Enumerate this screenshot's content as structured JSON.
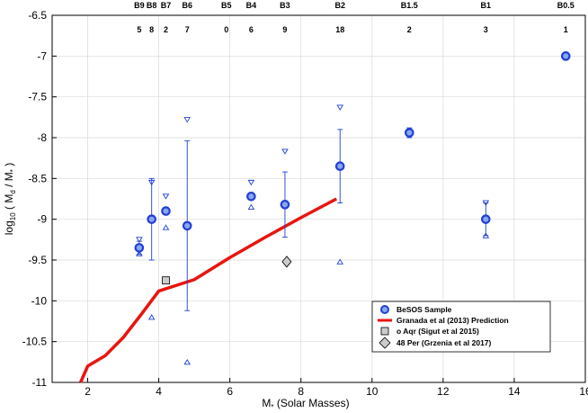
{
  "chart_data": {
    "type": "scatter",
    "xlabel": "M_* (Solar Masses)",
    "ylabel": "log10 (M_d / M_*)",
    "xlabel_text": "M",
    "xlabel_sub": "*",
    "xlabel_rest": " (Solar Masses)",
    "ylabel_parts": {
      "a": "log",
      "b": "10",
      "c": " ( M",
      "d": "d",
      "e": " / M",
      "f": "*",
      "g": " )"
    },
    "xlim": [
      1,
      16
    ],
    "ylim": [
      -11,
      -6.5
    ],
    "xticks": [
      "2",
      "4",
      "6",
      "8",
      "10",
      "12",
      "14",
      "16"
    ],
    "yticks": [
      "-6.5",
      "-7",
      "-7.5",
      "-8",
      "-8.5",
      "-9",
      "-9.5",
      "-10",
      "-10.5",
      "-11"
    ],
    "spectral_types": [
      {
        "label": "B9",
        "count": "5",
        "x": 3.45
      },
      {
        "label": "B8",
        "count": "8",
        "x": 3.8
      },
      {
        "label": "B7",
        "count": "2",
        "x": 4.2
      },
      {
        "label": "B6",
        "count": "7",
        "x": 4.8
      },
      {
        "label": "B5",
        "count": "0",
        "x": 5.9
      },
      {
        "label": "B4",
        "count": "6",
        "x": 6.6
      },
      {
        "label": "B3",
        "count": "9",
        "x": 7.55
      },
      {
        "label": "B2",
        "count": "18",
        "x": 9.1
      },
      {
        "label": "B1.5",
        "count": "2",
        "x": 11.05
      },
      {
        "label": "B1",
        "count": "3",
        "x": 13.2
      },
      {
        "label": "B0.5",
        "count": "1",
        "x": 15.45
      }
    ],
    "series": [
      {
        "name": "BeSOS Sample",
        "color": "#1f3fd6",
        "points": [
          {
            "x": 3.45,
            "y": -9.35,
            "err": 0.08,
            "max": -9.25,
            "min": -9.42
          },
          {
            "x": 3.8,
            "y": -9.0,
            "err": 0.5,
            "max": -8.55,
            "min": -10.2
          },
          {
            "x": 4.2,
            "y": -8.9,
            "err": 0.0,
            "max": -8.72,
            "min": -9.1
          },
          {
            "x": 4.8,
            "y": -9.08,
            "err_up": 1.04,
            "err_down": 1.04,
            "max": -7.78,
            "min": -10.75
          },
          {
            "x": 6.6,
            "y": -8.72,
            "err": 0.0,
            "max": -8.55,
            "min": -8.85
          },
          {
            "x": 7.55,
            "y": -8.82,
            "err": 0.4,
            "max": -8.17,
            "min": null
          },
          {
            "x": 9.1,
            "y": -8.35,
            "err": 0.45,
            "max": -7.63,
            "min": -9.52
          },
          {
            "x": 11.05,
            "y": -7.94,
            "err": 0.06,
            "max": null,
            "min": null
          },
          {
            "x": 13.2,
            "y": -9.0,
            "err": 0.2,
            "max": -8.8,
            "min": -9.2
          },
          {
            "x": 15.45,
            "y": -7.0,
            "err": 0.0,
            "max": null,
            "min": null
          }
        ]
      },
      {
        "name": "Granada et al (2013) Prediction",
        "color": "#e8150f",
        "x": [
          1.8,
          2.0,
          2.5,
          3.0,
          3.5,
          4.0,
          5.0,
          6.0,
          7.0,
          8.0,
          9.0
        ],
        "y": [
          -11.0,
          -10.8,
          -10.67,
          -10.45,
          -10.17,
          -9.88,
          -9.74,
          -9.47,
          -9.22,
          -8.98,
          -8.75
        ]
      },
      {
        "name": "o Aqr (Sigut et al 2015)",
        "marker": "square",
        "points": [
          {
            "x": 4.2,
            "y": -9.75
          }
        ]
      },
      {
        "name": "48 Per (Grzenia et al 2017)",
        "marker": "diamond",
        "points": [
          {
            "x": 7.6,
            "y": -9.52
          }
        ]
      }
    ],
    "legend": {
      "position": "lower-right",
      "entries": [
        "BeSOS Sample",
        "Granada et al (2013) Prediction",
        "o Aqr (Sigut et al 2015)",
        "48 Per (Grzenia et al 2017)"
      ]
    },
    "colors": {
      "blue": "#1f3fd6",
      "fill": "#8aa6f0",
      "red": "#e8150f",
      "gray": "#cccccc"
    }
  }
}
